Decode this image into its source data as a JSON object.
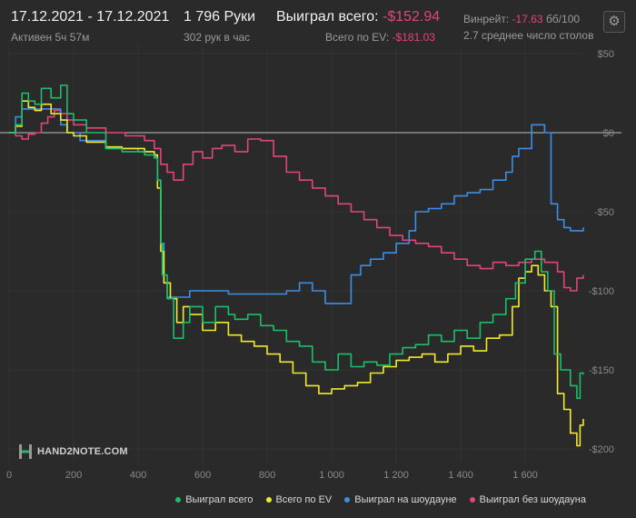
{
  "header": {
    "date_range": "17.12.2021 - 17.12.2021",
    "active_time": "Активен 5ч 57м",
    "hands": "1 796 Руки",
    "hands_per_hour": "302 рук в час",
    "won_total_label": "Выиграл всего:",
    "won_total_value": "-$152.94",
    "ev_label": "Всего по EV:",
    "ev_value": "-$181.03",
    "winrate_label": "Винрейт:",
    "winrate_value": "-17.63",
    "winrate_unit": "бб/100",
    "avg_tables": "2.7 среднее число столов",
    "settings_icon": "gear-icon"
  },
  "logo": {
    "text": "HAND2NOTE.COM"
  },
  "colors": {
    "green": "#1ebd6b",
    "yellow": "#f2ea2a",
    "blue": "#3b8fe6",
    "pink": "#e2457a",
    "axis_text": "#8a8a8a",
    "zero_line": "#bdbdbd"
  },
  "chart_data": {
    "type": "line",
    "xlabel": "",
    "ylabel": "",
    "xlim": [
      0,
      1780
    ],
    "ylim": [
      -205,
      50
    ],
    "x_ticks": [
      0,
      200,
      400,
      600,
      800,
      1000,
      1200,
      1400,
      1600
    ],
    "x_tick_labels": [
      "0",
      "200",
      "400",
      "600",
      "800",
      "1 000",
      "1 200",
      "1 400",
      "1 600"
    ],
    "y_ticks": [
      50,
      0,
      -50,
      -100,
      -150,
      -200
    ],
    "y_tick_labels": [
      "$50",
      "$0",
      "-$50",
      "-$100",
      "-$150",
      "-$200"
    ],
    "grid": true,
    "legend_position": "bottom-right",
    "series": [
      {
        "name": "Выиграл всего",
        "color": "#1ebd6b",
        "points": [
          [
            0,
            0
          ],
          [
            20,
            5
          ],
          [
            40,
            25
          ],
          [
            60,
            20
          ],
          [
            80,
            18
          ],
          [
            100,
            28
          ],
          [
            130,
            22
          ],
          [
            160,
            30
          ],
          [
            180,
            12
          ],
          [
            200,
            8
          ],
          [
            240,
            0
          ],
          [
            300,
            -10
          ],
          [
            350,
            -12
          ],
          [
            420,
            -14
          ],
          [
            450,
            -16
          ],
          [
            460,
            -30
          ],
          [
            470,
            -70
          ],
          [
            475,
            -90
          ],
          [
            490,
            -105
          ],
          [
            510,
            -130
          ],
          [
            540,
            -120
          ],
          [
            560,
            -110
          ],
          [
            600,
            -120
          ],
          [
            640,
            -110
          ],
          [
            680,
            -115
          ],
          [
            700,
            -118
          ],
          [
            740,
            -115
          ],
          [
            780,
            -122
          ],
          [
            820,
            -125
          ],
          [
            860,
            -132
          ],
          [
            900,
            -135
          ],
          [
            940,
            -145
          ],
          [
            980,
            -150
          ],
          [
            1020,
            -140
          ],
          [
            1060,
            -148
          ],
          [
            1100,
            -145
          ],
          [
            1140,
            -147
          ],
          [
            1180,
            -140
          ],
          [
            1220,
            -136
          ],
          [
            1260,
            -134
          ],
          [
            1300,
            -128
          ],
          [
            1340,
            -132
          ],
          [
            1380,
            -125
          ],
          [
            1420,
            -130
          ],
          [
            1460,
            -120
          ],
          [
            1500,
            -115
          ],
          [
            1540,
            -105
          ],
          [
            1570,
            -95
          ],
          [
            1600,
            -80
          ],
          [
            1630,
            -75
          ],
          [
            1650,
            -88
          ],
          [
            1670,
            -100
          ],
          [
            1690,
            -140
          ],
          [
            1710,
            -150
          ],
          [
            1740,
            -160
          ],
          [
            1760,
            -168
          ],
          [
            1770,
            -152
          ],
          [
            1780,
            -152.94
          ]
        ]
      },
      {
        "name": "Всего по EV",
        "color": "#f2ea2a",
        "points": [
          [
            0,
            0
          ],
          [
            20,
            4
          ],
          [
            40,
            20
          ],
          [
            60,
            16
          ],
          [
            80,
            14
          ],
          [
            100,
            18
          ],
          [
            130,
            12
          ],
          [
            160,
            8
          ],
          [
            180,
            0
          ],
          [
            200,
            -2
          ],
          [
            240,
            -6
          ],
          [
            300,
            -9
          ],
          [
            350,
            -10
          ],
          [
            420,
            -12
          ],
          [
            450,
            -14
          ],
          [
            460,
            -35
          ],
          [
            470,
            -75
          ],
          [
            480,
            -95
          ],
          [
            500,
            -105
          ],
          [
            520,
            -120
          ],
          [
            540,
            -110
          ],
          [
            560,
            -115
          ],
          [
            600,
            -125
          ],
          [
            640,
            -120
          ],
          [
            680,
            -128
          ],
          [
            720,
            -132
          ],
          [
            760,
            -135
          ],
          [
            800,
            -140
          ],
          [
            840,
            -145
          ],
          [
            880,
            -152
          ],
          [
            920,
            -160
          ],
          [
            960,
            -165
          ],
          [
            1000,
            -162
          ],
          [
            1040,
            -160
          ],
          [
            1080,
            -158
          ],
          [
            1120,
            -152
          ],
          [
            1160,
            -148
          ],
          [
            1200,
            -144
          ],
          [
            1240,
            -142
          ],
          [
            1280,
            -140
          ],
          [
            1320,
            -145
          ],
          [
            1360,
            -140
          ],
          [
            1400,
            -135
          ],
          [
            1440,
            -138
          ],
          [
            1480,
            -130
          ],
          [
            1520,
            -128
          ],
          [
            1560,
            -110
          ],
          [
            1580,
            -92
          ],
          [
            1600,
            -88
          ],
          [
            1620,
            -84
          ],
          [
            1640,
            -90
          ],
          [
            1660,
            -100
          ],
          [
            1680,
            -110
          ],
          [
            1700,
            -165
          ],
          [
            1720,
            -175
          ],
          [
            1740,
            -190
          ],
          [
            1760,
            -198
          ],
          [
            1770,
            -185
          ],
          [
            1780,
            -181.03
          ]
        ]
      },
      {
        "name": "Выиграл на шоудауне",
        "color": "#3b8fe6",
        "points": [
          [
            0,
            0
          ],
          [
            20,
            10
          ],
          [
            40,
            15
          ],
          [
            80,
            15
          ],
          [
            120,
            15
          ],
          [
            160,
            5
          ],
          [
            180,
            0
          ],
          [
            220,
            -5
          ],
          [
            300,
            -10
          ],
          [
            400,
            -12
          ],
          [
            450,
            -15
          ],
          [
            460,
            -30
          ],
          [
            470,
            -70
          ],
          [
            480,
            -95
          ],
          [
            490,
            -104
          ],
          [
            520,
            -104
          ],
          [
            560,
            -100
          ],
          [
            600,
            -100
          ],
          [
            640,
            -100
          ],
          [
            680,
            -102
          ],
          [
            740,
            -102
          ],
          [
            800,
            -102
          ],
          [
            860,
            -100
          ],
          [
            900,
            -95
          ],
          [
            940,
            -100
          ],
          [
            980,
            -108
          ],
          [
            1020,
            -108
          ],
          [
            1060,
            -90
          ],
          [
            1090,
            -84
          ],
          [
            1120,
            -80
          ],
          [
            1160,
            -76
          ],
          [
            1200,
            -70
          ],
          [
            1240,
            -62
          ],
          [
            1260,
            -50
          ],
          [
            1300,
            -48
          ],
          [
            1340,
            -45
          ],
          [
            1380,
            -40
          ],
          [
            1420,
            -38
          ],
          [
            1460,
            -36
          ],
          [
            1500,
            -30
          ],
          [
            1540,
            -25
          ],
          [
            1560,
            -15
          ],
          [
            1580,
            -10
          ],
          [
            1600,
            -10
          ],
          [
            1620,
            5
          ],
          [
            1640,
            5
          ],
          [
            1660,
            0
          ],
          [
            1680,
            -45
          ],
          [
            1700,
            -55
          ],
          [
            1720,
            -60
          ],
          [
            1740,
            -62
          ],
          [
            1760,
            -62
          ],
          [
            1780,
            -60
          ]
        ]
      },
      {
        "name": "Выиграл без шоудауна",
        "color": "#e2457a",
        "points": [
          [
            0,
            0
          ],
          [
            20,
            -2
          ],
          [
            40,
            -4
          ],
          [
            60,
            -1
          ],
          [
            80,
            0
          ],
          [
            100,
            6
          ],
          [
            120,
            10
          ],
          [
            140,
            14
          ],
          [
            160,
            12
          ],
          [
            180,
            8
          ],
          [
            200,
            5
          ],
          [
            240,
            3
          ],
          [
            300,
            0
          ],
          [
            360,
            -2
          ],
          [
            420,
            -5
          ],
          [
            450,
            -10
          ],
          [
            470,
            -20
          ],
          [
            490,
            -25
          ],
          [
            510,
            -30
          ],
          [
            540,
            -20
          ],
          [
            570,
            -12
          ],
          [
            600,
            -16
          ],
          [
            630,
            -10
          ],
          [
            660,
            -8
          ],
          [
            700,
            -12
          ],
          [
            740,
            -4
          ],
          [
            780,
            -5
          ],
          [
            820,
            -15
          ],
          [
            860,
            -25
          ],
          [
            900,
            -30
          ],
          [
            940,
            -35
          ],
          [
            980,
            -40
          ],
          [
            1020,
            -45
          ],
          [
            1060,
            -50
          ],
          [
            1100,
            -55
          ],
          [
            1140,
            -60
          ],
          [
            1180,
            -65
          ],
          [
            1220,
            -68
          ],
          [
            1260,
            -70
          ],
          [
            1300,
            -72
          ],
          [
            1340,
            -76
          ],
          [
            1380,
            -80
          ],
          [
            1420,
            -84
          ],
          [
            1460,
            -86
          ],
          [
            1500,
            -82
          ],
          [
            1540,
            -84
          ],
          [
            1580,
            -82
          ],
          [
            1620,
            -80
          ],
          [
            1660,
            -82
          ],
          [
            1700,
            -88
          ],
          [
            1720,
            -98
          ],
          [
            1740,
            -100
          ],
          [
            1760,
            -92
          ],
          [
            1780,
            -90
          ]
        ]
      }
    ]
  }
}
